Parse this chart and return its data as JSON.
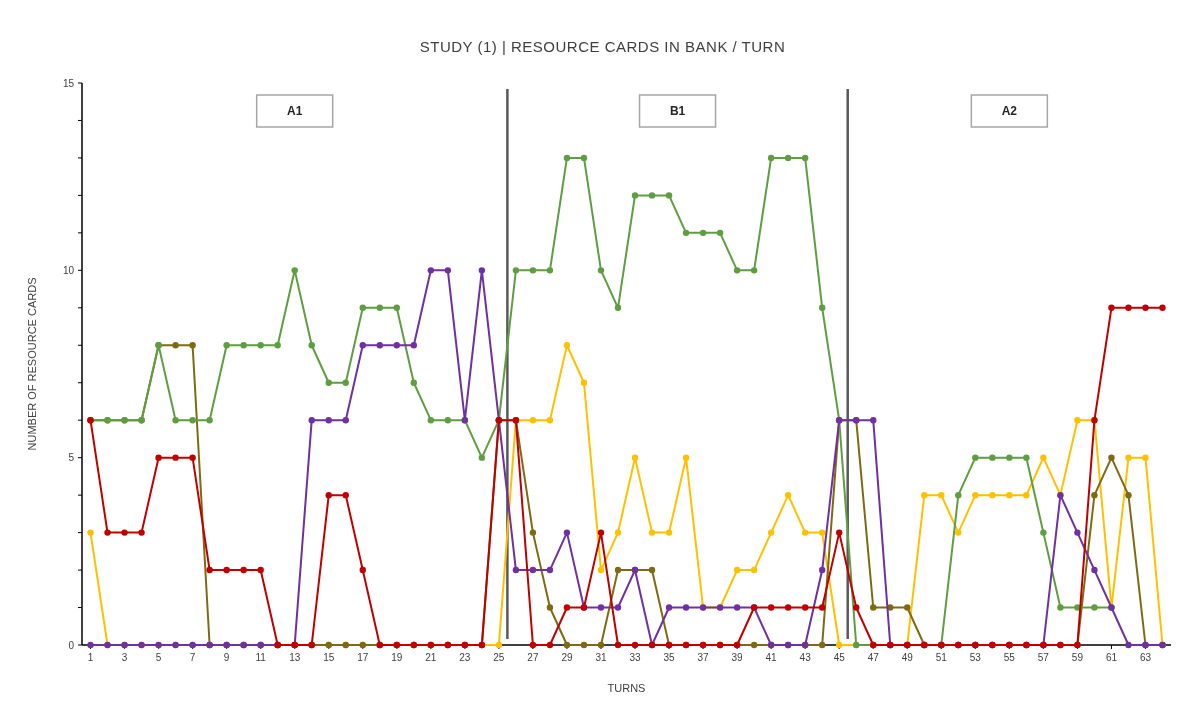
{
  "chart_data": {
    "type": "line",
    "title": "STUDY (1) | RESOURCE CARDS IN BANK / TURN",
    "xlabel": "TURNS",
    "ylabel": "NUMBER OF RESOURCE CARDS",
    "x": [
      1,
      2,
      3,
      4,
      5,
      6,
      7,
      8,
      9,
      10,
      11,
      12,
      13,
      14,
      15,
      16,
      17,
      18,
      19,
      20,
      21,
      22,
      23,
      24,
      25,
      26,
      27,
      28,
      29,
      30,
      31,
      32,
      33,
      34,
      35,
      36,
      37,
      38,
      39,
      40,
      41,
      42,
      43,
      44,
      45,
      46,
      47,
      48,
      49,
      50,
      51,
      52,
      53,
      54,
      55,
      56,
      57,
      58,
      59,
      60,
      61,
      62,
      63,
      64
    ],
    "series": [
      {
        "color": "#ffc000",
        "values": [
          3,
          0,
          0,
          0,
          0,
          0,
          0,
          0,
          0,
          0,
          0,
          0,
          0,
          0,
          0,
          0,
          0,
          0,
          0,
          0,
          0,
          0,
          0,
          0,
          0,
          6,
          6,
          6,
          8,
          7,
          2,
          3,
          5,
          3,
          3,
          5,
          1,
          1,
          2,
          2,
          3,
          4,
          3,
          3,
          0,
          0,
          0,
          0,
          0,
          4,
          4,
          3,
          4,
          4,
          4,
          4,
          5,
          4,
          6,
          6,
          1,
          5,
          5,
          0
        ]
      },
      {
        "color": "#7f6a14",
        "values": [
          6,
          6,
          6,
          6,
          8,
          8,
          8,
          0,
          0,
          0,
          0,
          0,
          0,
          0,
          0,
          0,
          0,
          0,
          0,
          0,
          0,
          0,
          0,
          0,
          6,
          6,
          3,
          1,
          0,
          0,
          0,
          2,
          2,
          2,
          0,
          0,
          0,
          0,
          0,
          0,
          0,
          0,
          0,
          0,
          6,
          6,
          1,
          1,
          1,
          0,
          0,
          0,
          0,
          0,
          0,
          0,
          0,
          0,
          0,
          4,
          5,
          4,
          0,
          0
        ]
      },
      {
        "color": "#5e9e40",
        "values": [
          6,
          6,
          6,
          6,
          8,
          6,
          6,
          6,
          8,
          8,
          8,
          8,
          10,
          8,
          7,
          7,
          9,
          9,
          9,
          7,
          6,
          6,
          6,
          5,
          6,
          10,
          10,
          10,
          13,
          13,
          10,
          9,
          12,
          12,
          12,
          11,
          11,
          11,
          10,
          10,
          13,
          13,
          13,
          9,
          6,
          0,
          0,
          0,
          0,
          0,
          0,
          4,
          5,
          5,
          5,
          5,
          3,
          1,
          1,
          1,
          1,
          null,
          null,
          null
        ]
      },
      {
        "color": "#7030a0",
        "values": [
          0,
          0,
          0,
          0,
          0,
          0,
          0,
          0,
          0,
          0,
          0,
          0,
          0,
          6,
          6,
          6,
          8,
          8,
          8,
          8,
          10,
          10,
          6,
          10,
          6,
          2,
          2,
          2,
          3,
          1,
          1,
          1,
          2,
          0,
          1,
          1,
          1,
          1,
          1,
          1,
          0,
          0,
          0,
          2,
          6,
          6,
          6,
          0,
          0,
          0,
          0,
          0,
          0,
          0,
          0,
          0,
          0,
          4,
          3,
          2,
          1,
          0,
          0,
          0
        ]
      },
      {
        "color": "#c00000",
        "values": [
          6,
          3,
          3,
          3,
          5,
          5,
          5,
          2,
          2,
          2,
          2,
          0,
          0,
          0,
          4,
          4,
          2,
          0,
          0,
          0,
          0,
          0,
          0,
          0,
          6,
          6,
          0,
          0,
          1,
          1,
          3,
          0,
          0,
          0,
          0,
          0,
          0,
          0,
          0,
          1,
          1,
          1,
          1,
          1,
          3,
          1,
          0,
          0,
          0,
          0,
          0,
          0,
          0,
          0,
          0,
          0,
          0,
          0,
          0,
          6,
          9,
          9,
          9,
          9
        ]
      }
    ],
    "xlim": [
      0.5,
      64.5
    ],
    "xticks": [
      1,
      3,
      5,
      7,
      9,
      11,
      13,
      15,
      17,
      19,
      21,
      23,
      25,
      27,
      29,
      31,
      33,
      35,
      37,
      39,
      41,
      43,
      45,
      47,
      49,
      51,
      53,
      55,
      57,
      59,
      61,
      63
    ],
    "ylim": [
      0,
      15
    ],
    "yticks": [
      0,
      {
        "value": 1,
        "label": null
      },
      {
        "value": 2,
        "label": null
      },
      {
        "value": 3,
        "label": null
      },
      {
        "value": 4,
        "label": null
      },
      5,
      {
        "value": 6,
        "label": null
      },
      {
        "value": 7,
        "label": null
      },
      {
        "value": 8,
        "label": null
      },
      {
        "value": 9,
        "label": null
      },
      10,
      {
        "value": 11,
        "label": null
      },
      {
        "value": 12,
        "label": null
      },
      {
        "value": 13,
        "label": null
      },
      {
        "value": 14,
        "label": null
      },
      15
    ],
    "marker": "circle",
    "ref_lines": [
      {
        "axis": "x",
        "value": 25.5,
        "color": "#595959"
      },
      {
        "axis": "x",
        "value": 45.5,
        "color": "#595959"
      }
    ],
    "annotations": [
      "A1",
      "B1",
      "A2"
    ]
  }
}
